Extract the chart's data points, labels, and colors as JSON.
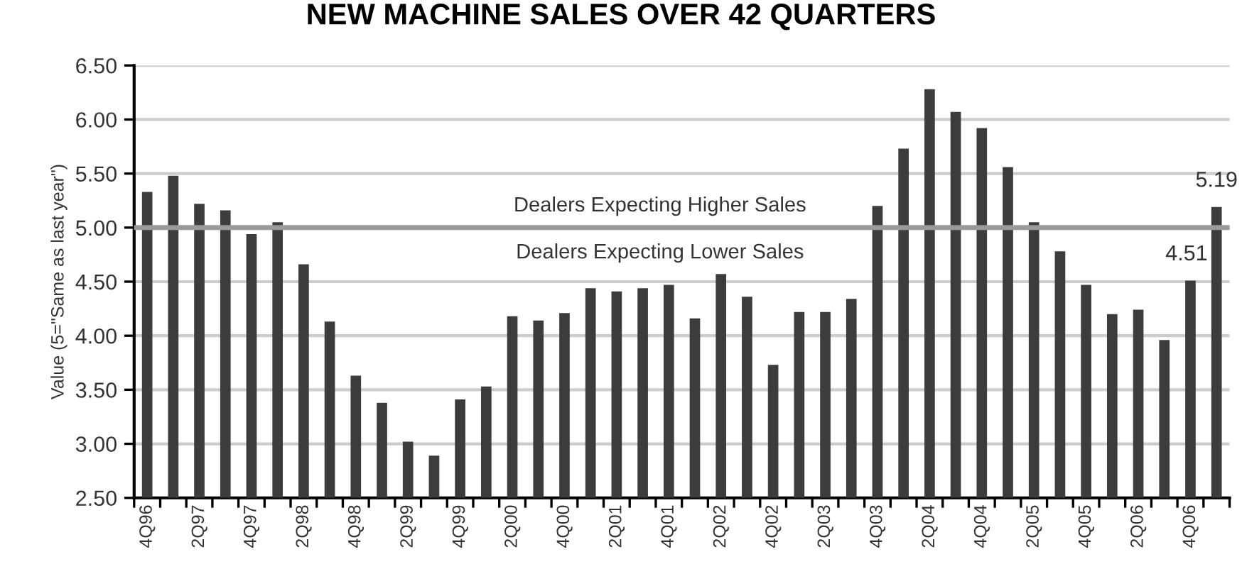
{
  "chart_data": {
    "type": "bar",
    "title": "NEW MACHINE SALES OVER 42 QUARTERS",
    "ylabel": "Value (5=\"Same as last year\")",
    "categories": [
      "4Q96",
      null,
      "2Q97",
      null,
      "4Q97",
      null,
      "2Q98",
      null,
      "4Q98",
      null,
      "2Q99",
      null,
      "4Q99",
      null,
      "2Q00",
      null,
      "4Q00",
      null,
      "2Q01",
      null,
      "4Q01",
      null,
      "2Q02",
      null,
      "4Q02",
      null,
      "2Q03",
      null,
      "4Q03",
      null,
      "2Q04",
      null,
      "4Q04",
      null,
      "2Q05",
      null,
      "4Q05",
      null,
      "2Q06",
      null,
      "4Q06",
      null
    ],
    "values": [
      5.33,
      5.48,
      5.22,
      5.16,
      4.94,
      5.05,
      4.66,
      4.13,
      3.63,
      3.38,
      3.02,
      2.89,
      3.41,
      3.53,
      4.18,
      4.14,
      4.21,
      4.44,
      4.41,
      4.44,
      4.47,
      4.16,
      4.57,
      4.36,
      3.73,
      4.22,
      4.22,
      4.34,
      5.2,
      5.73,
      6.28,
      6.07,
      5.92,
      5.56,
      5.05,
      4.78,
      4.47,
      4.2,
      4.24,
      3.96,
      4.51,
      5.19
    ],
    "value_labels": [
      null,
      null,
      null,
      null,
      null,
      null,
      null,
      null,
      null,
      null,
      null,
      null,
      null,
      null,
      null,
      null,
      null,
      null,
      null,
      null,
      null,
      null,
      null,
      null,
      null,
      null,
      null,
      null,
      null,
      null,
      null,
      null,
      null,
      null,
      null,
      null,
      null,
      null,
      null,
      null,
      "4.51",
      "5.19"
    ],
    "color": "#3c3c3c",
    "ylim": [
      2.5,
      6.5
    ],
    "yticks": [
      "2.50",
      "3.00",
      "3.50",
      "4.00",
      "4.50",
      "5.00",
      "5.50",
      "6.00",
      "6.50"
    ],
    "grid": "y",
    "ref_lines": [
      {
        "axis": "y",
        "value": 5,
        "color": "#9a9a9a"
      }
    ],
    "annotations": [
      "Dealers Expecting Higher Sales",
      "Dealers Expecting Lower Sales"
    ]
  }
}
